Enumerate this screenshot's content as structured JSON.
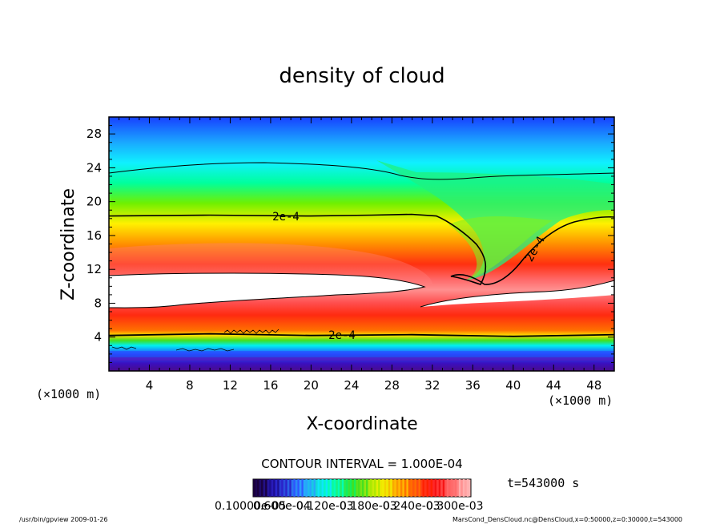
{
  "chart_data": {
    "type": "heatmap",
    "title": "density of cloud",
    "xlabel": "X-coordinate",
    "ylabel": "Z-coordinate",
    "x_unit": "(×1000 m)",
    "y_unit": "(×1000 m)",
    "xlim": [
      0,
      50
    ],
    "ylim": [
      0,
      30
    ],
    "xticks": [
      "4",
      "8",
      "12",
      "16",
      "20",
      "24",
      "28",
      "32",
      "36",
      "40",
      "44",
      "48"
    ],
    "yticks": [
      "4",
      "8",
      "12",
      "16",
      "20",
      "24",
      "28"
    ],
    "grid": false,
    "contour_interval_text": "CONTOUR INTERVAL = 1.000E-04",
    "contour_labels": [
      {
        "text": "2e-4",
        "x": 16.9,
        "z": 18.2
      },
      {
        "text": "2e-4",
        "x": 23.0,
        "z": 4.2
      },
      {
        "text": "2e-4",
        "x": 40.8,
        "z": 13.8
      }
    ],
    "contour_2e4_upper": {
      "x": [
        0,
        10,
        20,
        26,
        30,
        32.4,
        33.6,
        35,
        36.4,
        37.4,
        37,
        35.2,
        33.4,
        35,
        38.5,
        40.6,
        43,
        46,
        50
      ],
      "z": [
        18.2,
        18.3,
        18.2,
        18.3,
        18.4,
        18.2,
        17.0,
        15.0,
        13.5,
        12.0,
        10.8,
        10.6,
        11.3,
        10.0,
        9.8,
        11.5,
        14.8,
        17.0,
        18.0
      ]
    },
    "contour_2e4_lower": {
      "x": [
        0,
        10,
        20,
        30,
        40,
        50
      ],
      "z": [
        4.2,
        4.4,
        4.2,
        4.3,
        4.1,
        4.3
      ]
    },
    "contour_top": {
      "x": [
        0,
        6,
        14,
        22,
        28,
        31,
        36,
        42,
        50
      ],
      "z": [
        23.0,
        24.0,
        24.5,
        24.3,
        22.8,
        21.8,
        22.4,
        22.6,
        23.0
      ]
    },
    "colorbar": {
      "label_text": "0.10000e-05",
      "overlapping_labels": [
        "0.600e-04",
        "0.120e-03",
        "0.180e-03",
        "0.240e-03",
        "0.300e-03"
      ],
      "colors": [
        "#1a003a",
        "#1c0d8c",
        "#2a1ec8",
        "#3050ff",
        "#2aa0ff",
        "#10e4ff",
        "#00ffc0",
        "#10f060",
        "#40e020",
        "#a8e800",
        "#f0f000",
        "#ffc000",
        "#ff7000",
        "#ff2000",
        "#f51010",
        "#ff6a6a",
        "#ffb0b0"
      ]
    },
    "time_text": "t=543000 s"
  },
  "footer": {
    "left": "/usr/bin/gpview   2009-01-26",
    "right": "MarsCond_DensCloud.nc@DensCloud,x=0:50000,z=0:30000,t=543000"
  }
}
